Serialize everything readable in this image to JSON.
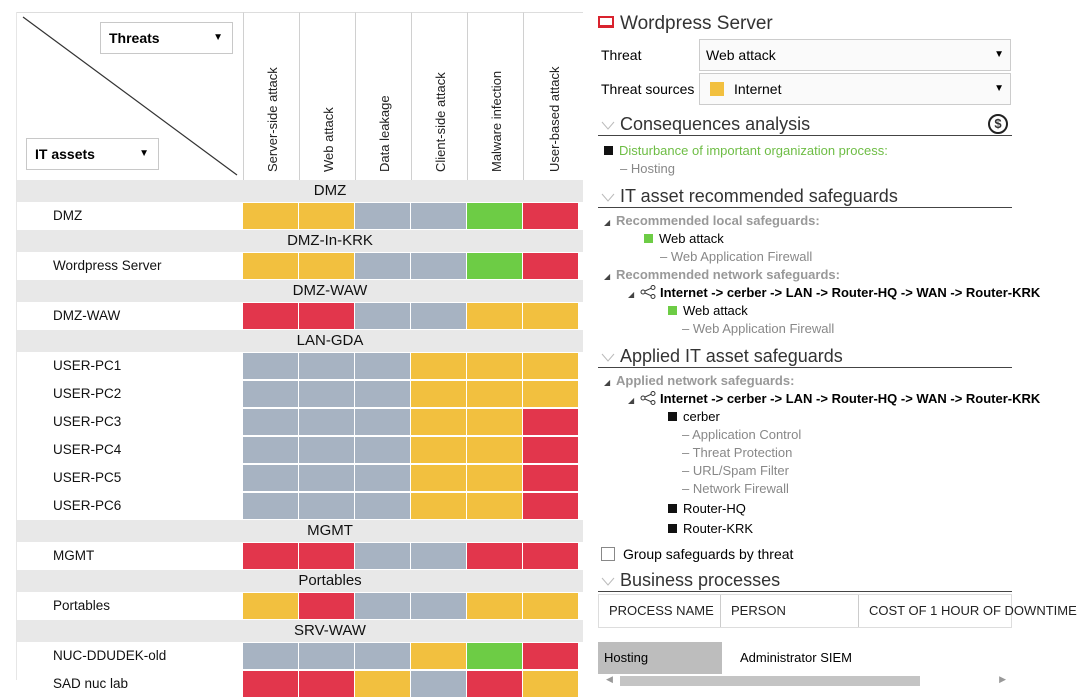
{
  "matrix": {
    "threats_dropdown": "Threats",
    "assets_dropdown": "IT assets",
    "threat_columns": [
      "Server-side attack",
      "Web attack",
      "Data leakage",
      "Client-side attack",
      "Malware infection",
      "User-based attack"
    ],
    "groups": [
      {
        "label": "DMZ",
        "assets": [
          {
            "name": "DMZ",
            "cells": [
              "yellow",
              "yellow",
              "gray",
              "gray",
              "green",
              "red"
            ]
          }
        ]
      },
      {
        "label": "DMZ-In-KRK",
        "assets": [
          {
            "name": "Wordpress Server",
            "cells": [
              "yellow",
              "yellow",
              "gray",
              "gray",
              "green",
              "red"
            ]
          }
        ]
      },
      {
        "label": "DMZ-WAW",
        "assets": [
          {
            "name": "DMZ-WAW",
            "cells": [
              "red",
              "red",
              "gray",
              "gray",
              "yellow",
              "yellow"
            ]
          }
        ]
      },
      {
        "label": "LAN-GDA",
        "assets": [
          {
            "name": "USER-PC1",
            "cells": [
              "gray",
              "gray",
              "gray",
              "yellow",
              "yellow",
              "yellow"
            ]
          },
          {
            "name": "USER-PC2",
            "cells": [
              "gray",
              "gray",
              "gray",
              "yellow",
              "yellow",
              "yellow"
            ]
          },
          {
            "name": "USER-PC3",
            "cells": [
              "gray",
              "gray",
              "gray",
              "yellow",
              "yellow",
              "red"
            ]
          },
          {
            "name": "USER-PC4",
            "cells": [
              "gray",
              "gray",
              "gray",
              "yellow",
              "yellow",
              "red"
            ]
          },
          {
            "name": "USER-PC5",
            "cells": [
              "gray",
              "gray",
              "gray",
              "yellow",
              "yellow",
              "red"
            ]
          },
          {
            "name": "USER-PC6",
            "cells": [
              "gray",
              "gray",
              "gray",
              "yellow",
              "yellow",
              "red"
            ]
          }
        ]
      },
      {
        "label": "MGMT",
        "assets": [
          {
            "name": "MGMT",
            "cells": [
              "red",
              "red",
              "gray",
              "gray",
              "red",
              "red"
            ]
          }
        ]
      },
      {
        "label": "Portables",
        "assets": [
          {
            "name": "Portables",
            "cells": [
              "yellow",
              "red",
              "gray",
              "gray",
              "yellow",
              "yellow"
            ]
          }
        ]
      },
      {
        "label": "SRV-WAW",
        "assets": [
          {
            "name": "NUC-DDUDEK-old",
            "cells": [
              "gray",
              "gray",
              "gray",
              "yellow",
              "green",
              "red"
            ]
          },
          {
            "name": "SAD nuc lab",
            "cells": [
              "red",
              "red",
              "yellow",
              "gray",
              "red",
              "yellow"
            ]
          }
        ]
      }
    ]
  },
  "panel": {
    "title": "Wordpress Server",
    "threat_label": "Threat",
    "threat_value": "Web attack",
    "sources_label": "Threat sources",
    "sources_value": "Internet",
    "consequences": {
      "title": "Consequences analysis",
      "dollar": "$",
      "item": "Disturbance of important organization process:",
      "sub": "Hosting"
    },
    "recommended": {
      "title": "IT asset recommended safeguards",
      "local_head": "Recommended local safeguards:",
      "local_threat": "Web attack",
      "local_safeguard": "Web Application Firewall",
      "network_head": "Recommended network safeguards:",
      "path": "Internet -> cerber -> LAN -> Router-HQ -> WAN -> Router-KRK",
      "net_threat": "Web attack",
      "net_safeguard": "Web Application Firewall"
    },
    "applied": {
      "title": "Applied IT asset safeguards",
      "network_head": "Applied network safeguards:",
      "path": "Internet -> cerber -> LAN -> Router-HQ -> WAN -> Router-KRK",
      "device": "cerber",
      "safeguards": [
        "Application Control",
        "Threat Protection",
        "URL/Spam Filter",
        "Network Firewall"
      ],
      "routers": [
        "Router-HQ",
        "Router-KRK"
      ]
    },
    "group_checkbox": "Group safeguards by threat",
    "business": {
      "title": "Business processes",
      "columns": [
        "PROCESS NAME",
        "PERSON",
        "COST OF 1 HOUR OF DOWNTIME"
      ],
      "row": {
        "process": "Hosting",
        "person": "Administrator SIEM"
      }
    }
  },
  "colors": {
    "yellow": "#f2c03f",
    "gray": "#a7b3c2",
    "green": "#6dcc45",
    "red": "#e2364c"
  }
}
